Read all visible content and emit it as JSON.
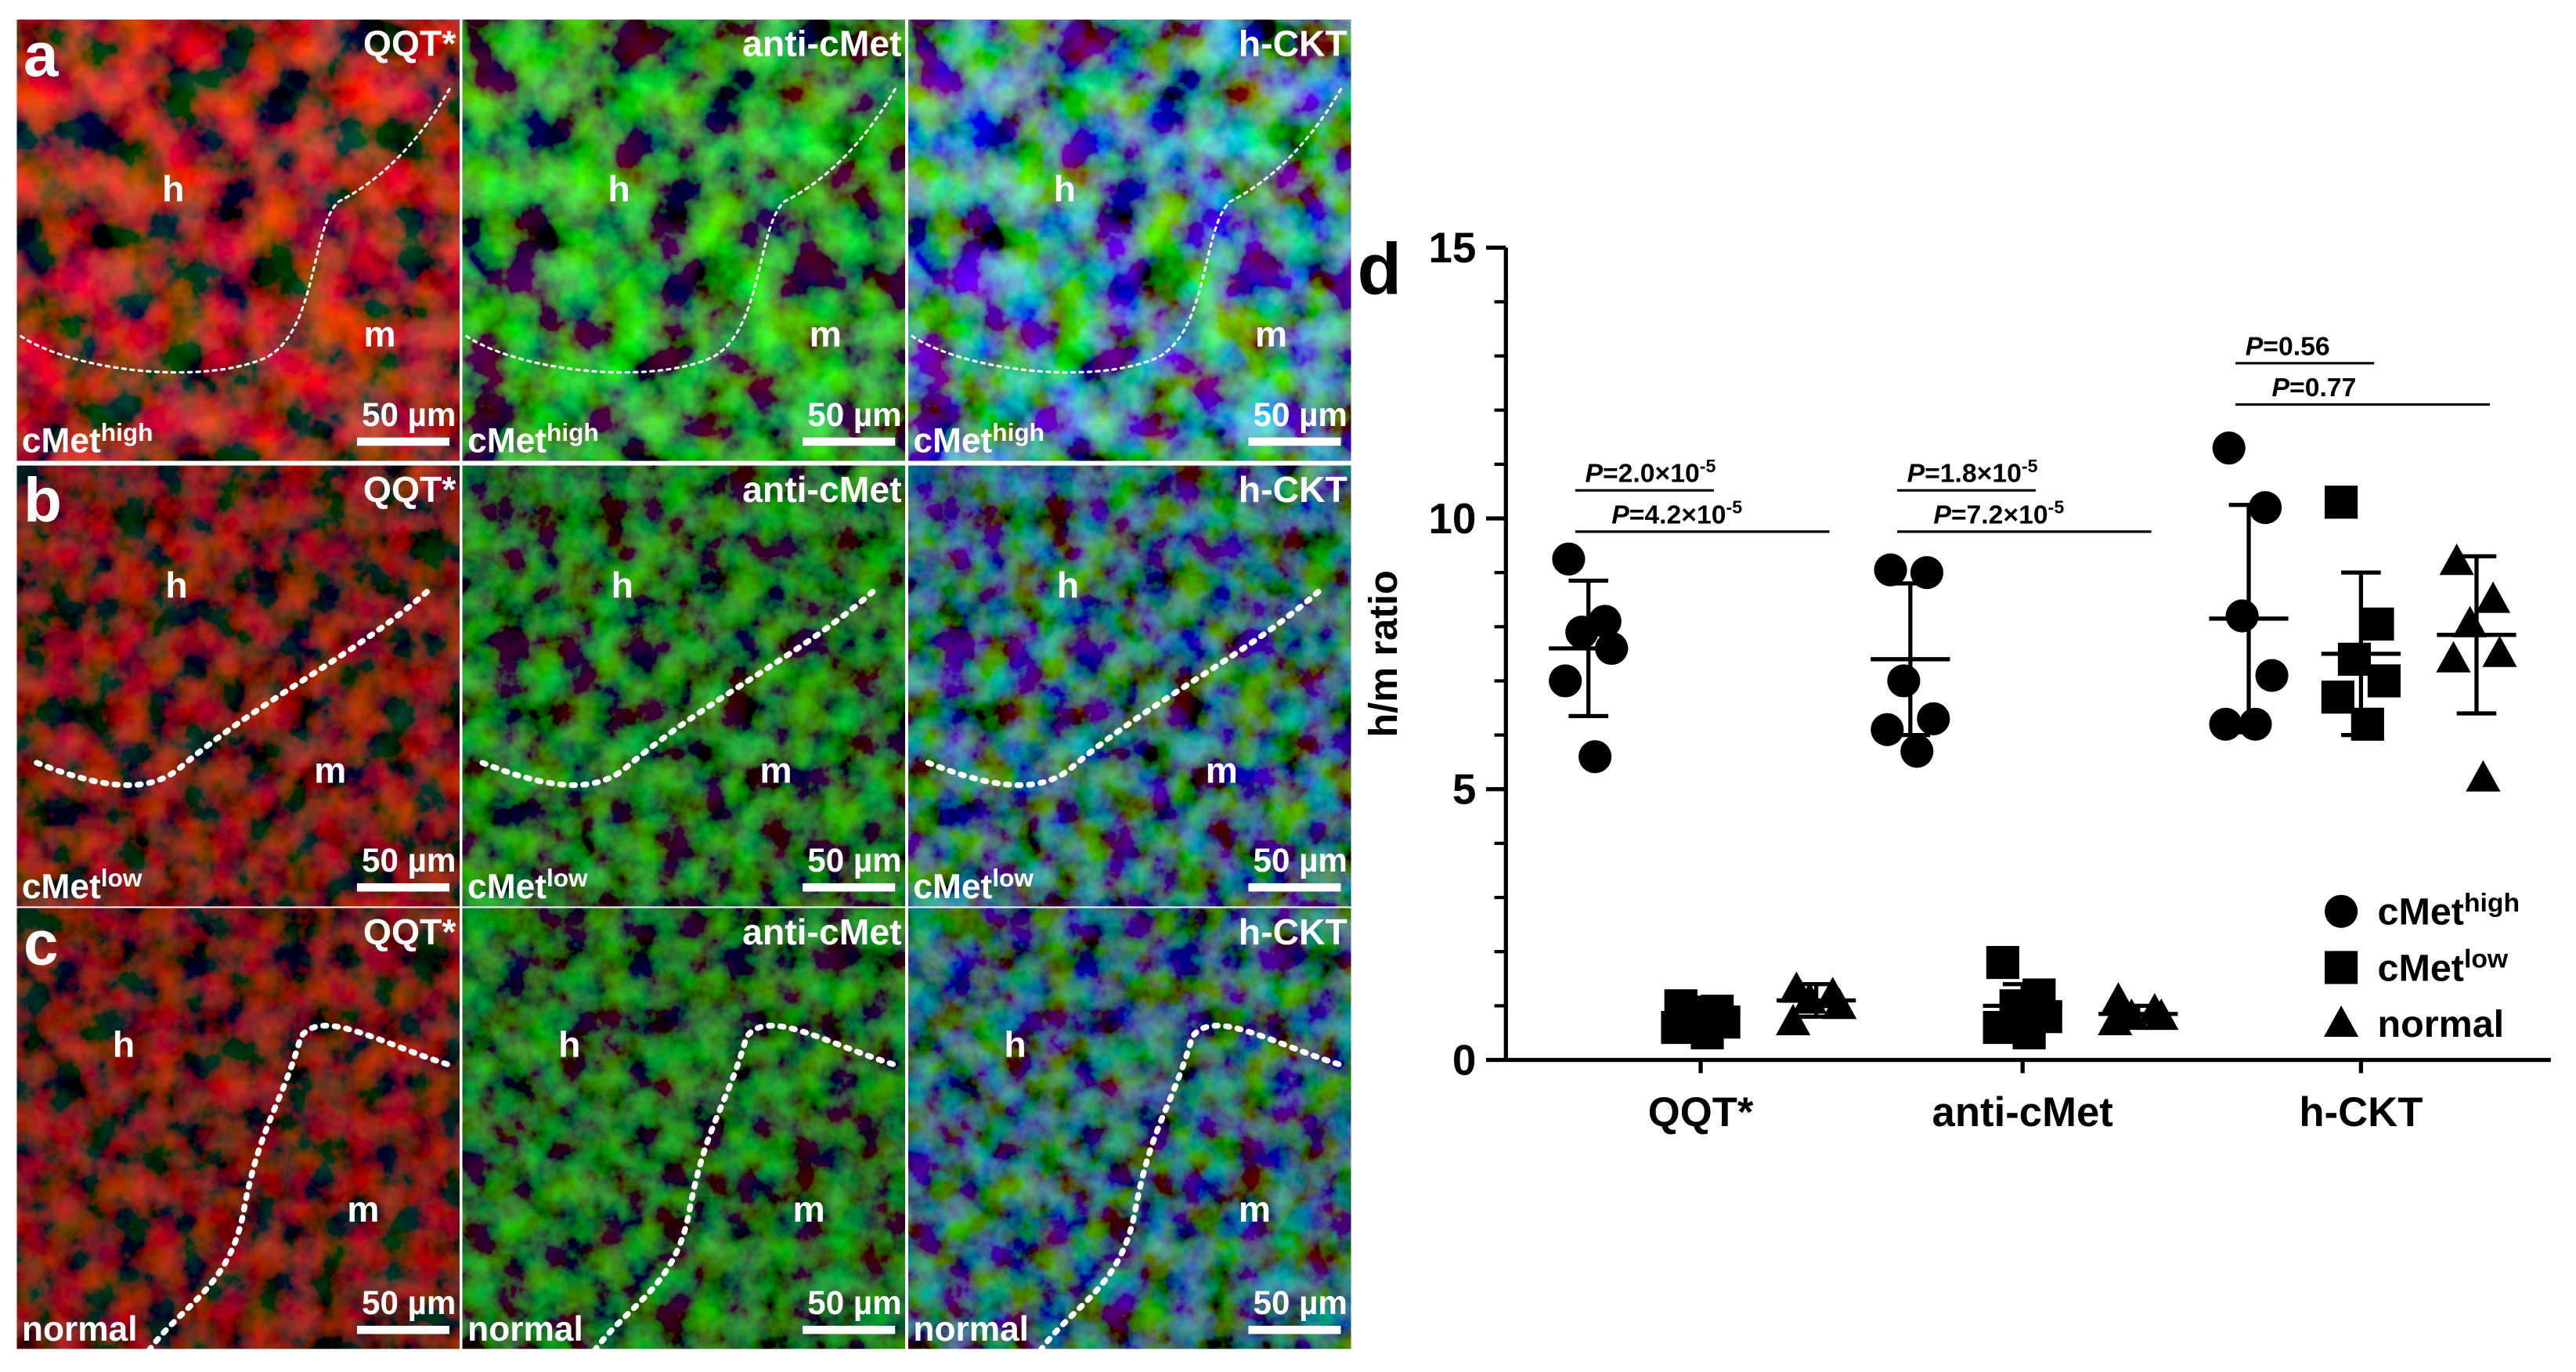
{
  "figure": {
    "columns": [
      "QQT*",
      "anti-cMet",
      "h-CKT"
    ],
    "rows": [
      {
        "letter": "a",
        "condition": "cMet",
        "condition_sup": "high"
      },
      {
        "letter": "b",
        "condition": "cMet",
        "condition_sup": "low"
      },
      {
        "letter": "c",
        "condition": "normal"
      }
    ],
    "region_labels": [
      "h",
      "m"
    ],
    "scale_bar": "50 µm"
  },
  "chart_data": {
    "type": "scatter",
    "panel_letter": "d",
    "y_label": "h/m ratio",
    "categories": [
      "QQT*",
      "anti-cMet",
      "h-CKT"
    ],
    "ylim": [
      0,
      15
    ],
    "yticks": [
      0,
      5,
      10,
      15
    ],
    "yminorticks": [
      1,
      2,
      3,
      4,
      6,
      7,
      8,
      9,
      11,
      12,
      13,
      14
    ],
    "series": [
      {
        "name": "cMet",
        "name_sup": "high",
        "marker": "circle",
        "color": "#000000",
        "values": [
          [
            9.25,
            8.1,
            7.9,
            7.6,
            7.0,
            5.6
          ],
          [
            9.05,
            9.0,
            7.0,
            6.3,
            6.1,
            5.7
          ],
          [
            11.3,
            10.2,
            8.2,
            7.1,
            6.2,
            6.2
          ]
        ],
        "mean": [
          7.6,
          7.4,
          8.15
        ],
        "sd": [
          1.25,
          1.4,
          2.1
        ]
      },
      {
        "name": "cMet",
        "name_sup": "low",
        "marker": "square",
        "color": "#000000",
        "values": [
          [
            1.0,
            0.9,
            0.8,
            0.7,
            0.6,
            0.5
          ],
          [
            1.8,
            1.2,
            1.0,
            0.8,
            0.6,
            0.5
          ],
          [
            10.3,
            8.05,
            7.4,
            7.0,
            6.7,
            6.2
          ]
        ],
        "mean": [
          0.85,
          1.0,
          7.5
        ],
        "sd": [
          0.3,
          0.4,
          1.5
        ]
      },
      {
        "name": "normal",
        "marker": "triangle",
        "color": "#000000",
        "values": [
          [
            1.3,
            1.2,
            1.1,
            1.0,
            0.7
          ],
          [
            1.1,
            0.9,
            0.8,
            0.8,
            0.7
          ],
          [
            9.2,
            8.5,
            8.05,
            7.5,
            7.4,
            5.2
          ]
        ],
        "mean": [
          1.1,
          0.85,
          7.85
        ],
        "sd": [
          0.3,
          0.15,
          1.45
        ]
      }
    ],
    "annotations": [
      {
        "category": 0,
        "from": 0,
        "to": 1,
        "symbol": "P",
        "text": "=2.0×10",
        "exponent": "-5"
      },
      {
        "category": 0,
        "from": 0,
        "to": 2,
        "symbol": "P",
        "text": "=4.2×10",
        "exponent": "-5"
      },
      {
        "category": 1,
        "from": 0,
        "to": 1,
        "symbol": "P",
        "text": "=1.8×10",
        "exponent": "-5"
      },
      {
        "category": 1,
        "from": 0,
        "to": 2,
        "symbol": "P",
        "text": "=7.2×10",
        "exponent": "-5"
      },
      {
        "category": 2,
        "from": 0,
        "to": 1,
        "symbol": "P",
        "text": "=0.56"
      },
      {
        "category": 2,
        "from": 0,
        "to": 2,
        "symbol": "P",
        "text": "=0.77"
      }
    ]
  }
}
